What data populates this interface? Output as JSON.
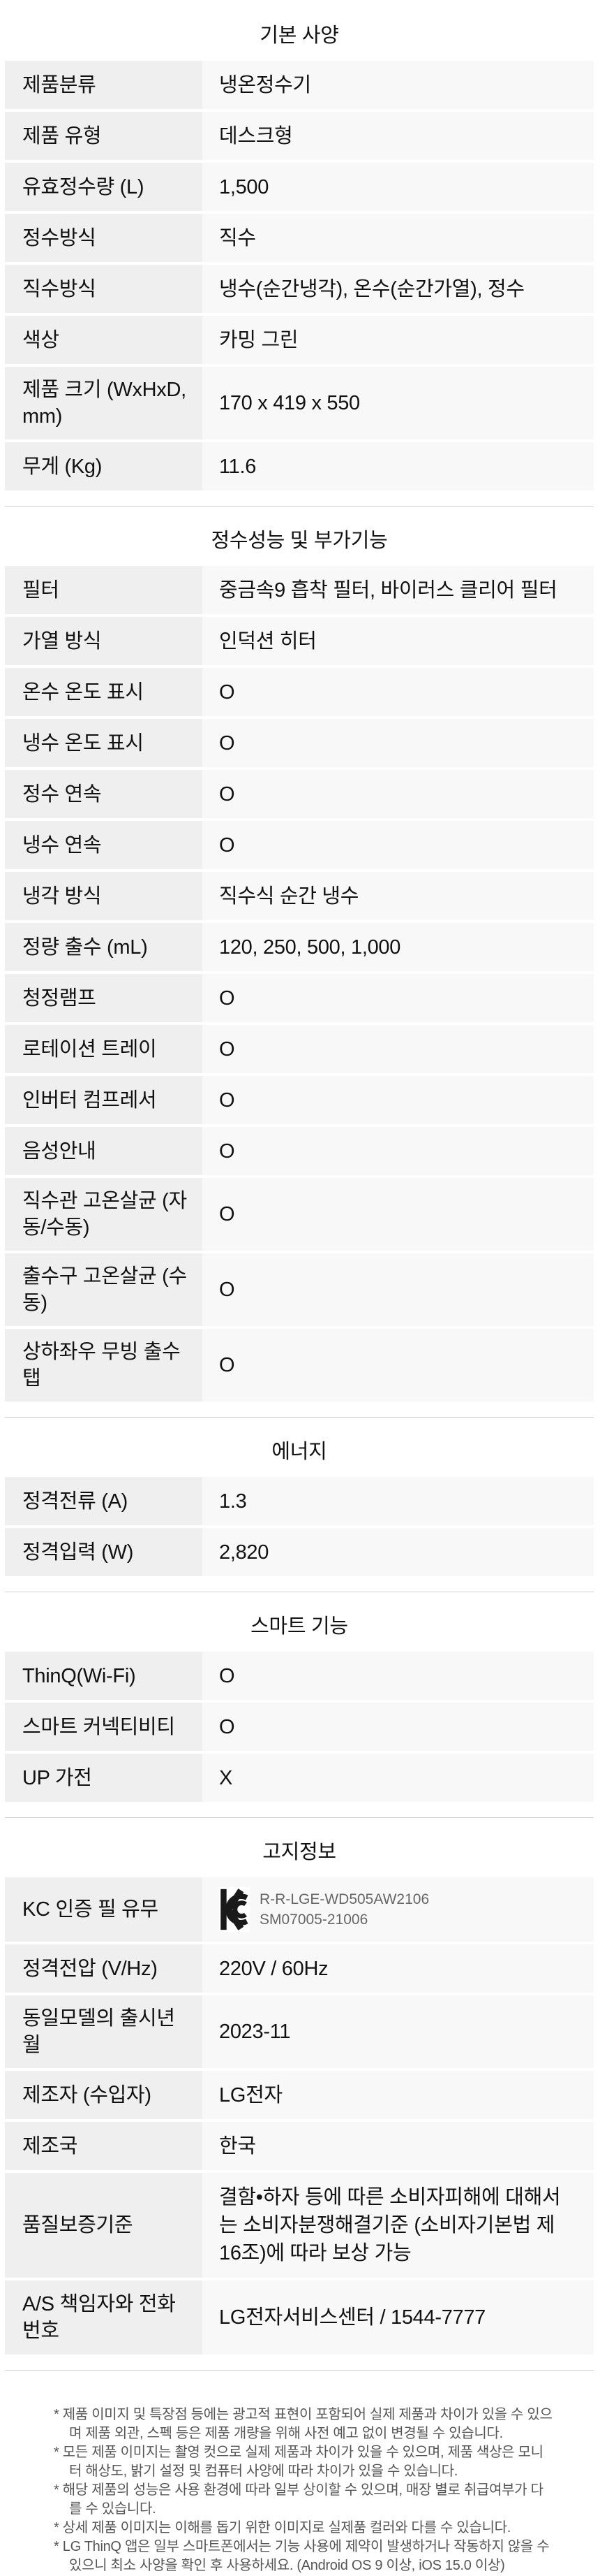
{
  "footnote_bullet": "*",
  "colors": {
    "label_cell_bg": "#efefef",
    "value_cell_bg": "#f8f8f8",
    "divider": "#d0d0d0",
    "text": "#111111",
    "footnote_text": "#555555",
    "kc_cert_text": "#666666",
    "kc_mark": "#1a1a1a"
  },
  "sections": [
    {
      "title": "기본 사양",
      "rows": [
        {
          "label": "제품분류",
          "value": "냉온정수기"
        },
        {
          "label": "제품 유형",
          "value": "데스크형"
        },
        {
          "label": "유효정수량 (L)",
          "value": "1,500"
        },
        {
          "label": "정수방식",
          "value": "직수"
        },
        {
          "label": "직수방식",
          "value": "냉수(순간냉각), 온수(순간가열), 정수"
        },
        {
          "label": "색상",
          "value": "카밍 그린"
        },
        {
          "label": "제품 크기 (WxHxD, mm)",
          "value": "170 x 419 x 550"
        },
        {
          "label": "무게 (Kg)",
          "value": "11.6"
        }
      ]
    },
    {
      "title": "정수성능 및 부가기능",
      "rows": [
        {
          "label": "필터",
          "value": "중금속9 흡착 필터, 바이러스 클리어 필터"
        },
        {
          "label": "가열 방식",
          "value": "인덕션 히터"
        },
        {
          "label": "온수 온도 표시",
          "value": "O"
        },
        {
          "label": "냉수 온도 표시",
          "value": "O"
        },
        {
          "label": "정수 연속",
          "value": "O"
        },
        {
          "label": "냉수 연속",
          "value": "O"
        },
        {
          "label": "냉각 방식",
          "value": "직수식 순간 냉수"
        },
        {
          "label": "정량 출수 (mL)",
          "value": "120, 250, 500, 1,000"
        },
        {
          "label": "청정램프",
          "value": "O"
        },
        {
          "label": "로테이션 트레이",
          "value": "O"
        },
        {
          "label": "인버터 컴프레서",
          "value": "O"
        },
        {
          "label": "음성안내",
          "value": "O"
        },
        {
          "label": "직수관 고온살균 (자동/수동)",
          "value": "O"
        },
        {
          "label": "출수구 고온살균 (수동)",
          "value": "O"
        },
        {
          "label": "상하좌우 무빙 출수탭",
          "value": "O"
        }
      ]
    },
    {
      "title": "에너지",
      "rows": [
        {
          "label": "정격전류 (A)",
          "value": "1.3"
        },
        {
          "label": "정격입력 (W)",
          "value": "2,820"
        }
      ]
    },
    {
      "title": "스마트 기능",
      "rows": [
        {
          "label": "ThinQ(Wi-Fi)",
          "value": "O"
        },
        {
          "label": "스마트 커넥티비티",
          "value": "O"
        },
        {
          "label": "UP 가전",
          "value": "X"
        }
      ]
    },
    {
      "title": "고지정보",
      "rows": [
        {
          "label": "KC 인증 필 유무",
          "value": "",
          "kc_cert_line1": "R-R-LGE-WD505AW2106",
          "kc_cert_line2": "SM07005-21006"
        },
        {
          "label": "정격전압 (V/Hz)",
          "value": "220V / 60Hz"
        },
        {
          "label": "동일모델의 출시년월",
          "value": "2023-11"
        },
        {
          "label": "제조자 (수입자)",
          "value": "LG전자"
        },
        {
          "label": "제조국",
          "value": "한국"
        },
        {
          "label": "품질보증기준",
          "value": "결함•하자 등에 따른 소비자피해에 대해서는 소비자분쟁해결기준 (소비자기본법 제 16조)에 따라 보상 가능"
        },
        {
          "label": "A/S 책임자와 전화번호",
          "value": "LG전자서비스센터 / 1544-7777"
        }
      ]
    }
  ],
  "footnotes": [
    "제품 이미지 및 특장점 등에는 광고적 표현이 포함되어 실제 제품과 차이가 있을 수 있으며 제품 외관, 스펙 등은 제품 개량을 위해 사전 예고 없이 변경될 수 있습니다.",
    "모든 제품 이미지는 촬영 컷으로 실제 제품과 차이가 있을 수 있으며, 제품 색상은 모니터 해상도, 밝기 설정 및 컴퓨터 사양에 따라 차이가 있을 수 있습니다.",
    "해당 제품의 성능은 사용 환경에 따라 일부 상이할 수 있으며, 매장 별로 취급여부가 다를 수 있습니다.",
    "상세 제품 이미지는 이해를 돕기 위한 이미지로 실제품 컬러와 다를 수 있습니다.",
    "LG ThinQ 앱은 일부 스마트폰에서는 기능 사용에 제약이 발생하거나 작동하지 않을 수 있으니 최소 사양을 확인 후 사용하세요. (Android OS 9 이상, iOS 15.0 이상)"
  ]
}
